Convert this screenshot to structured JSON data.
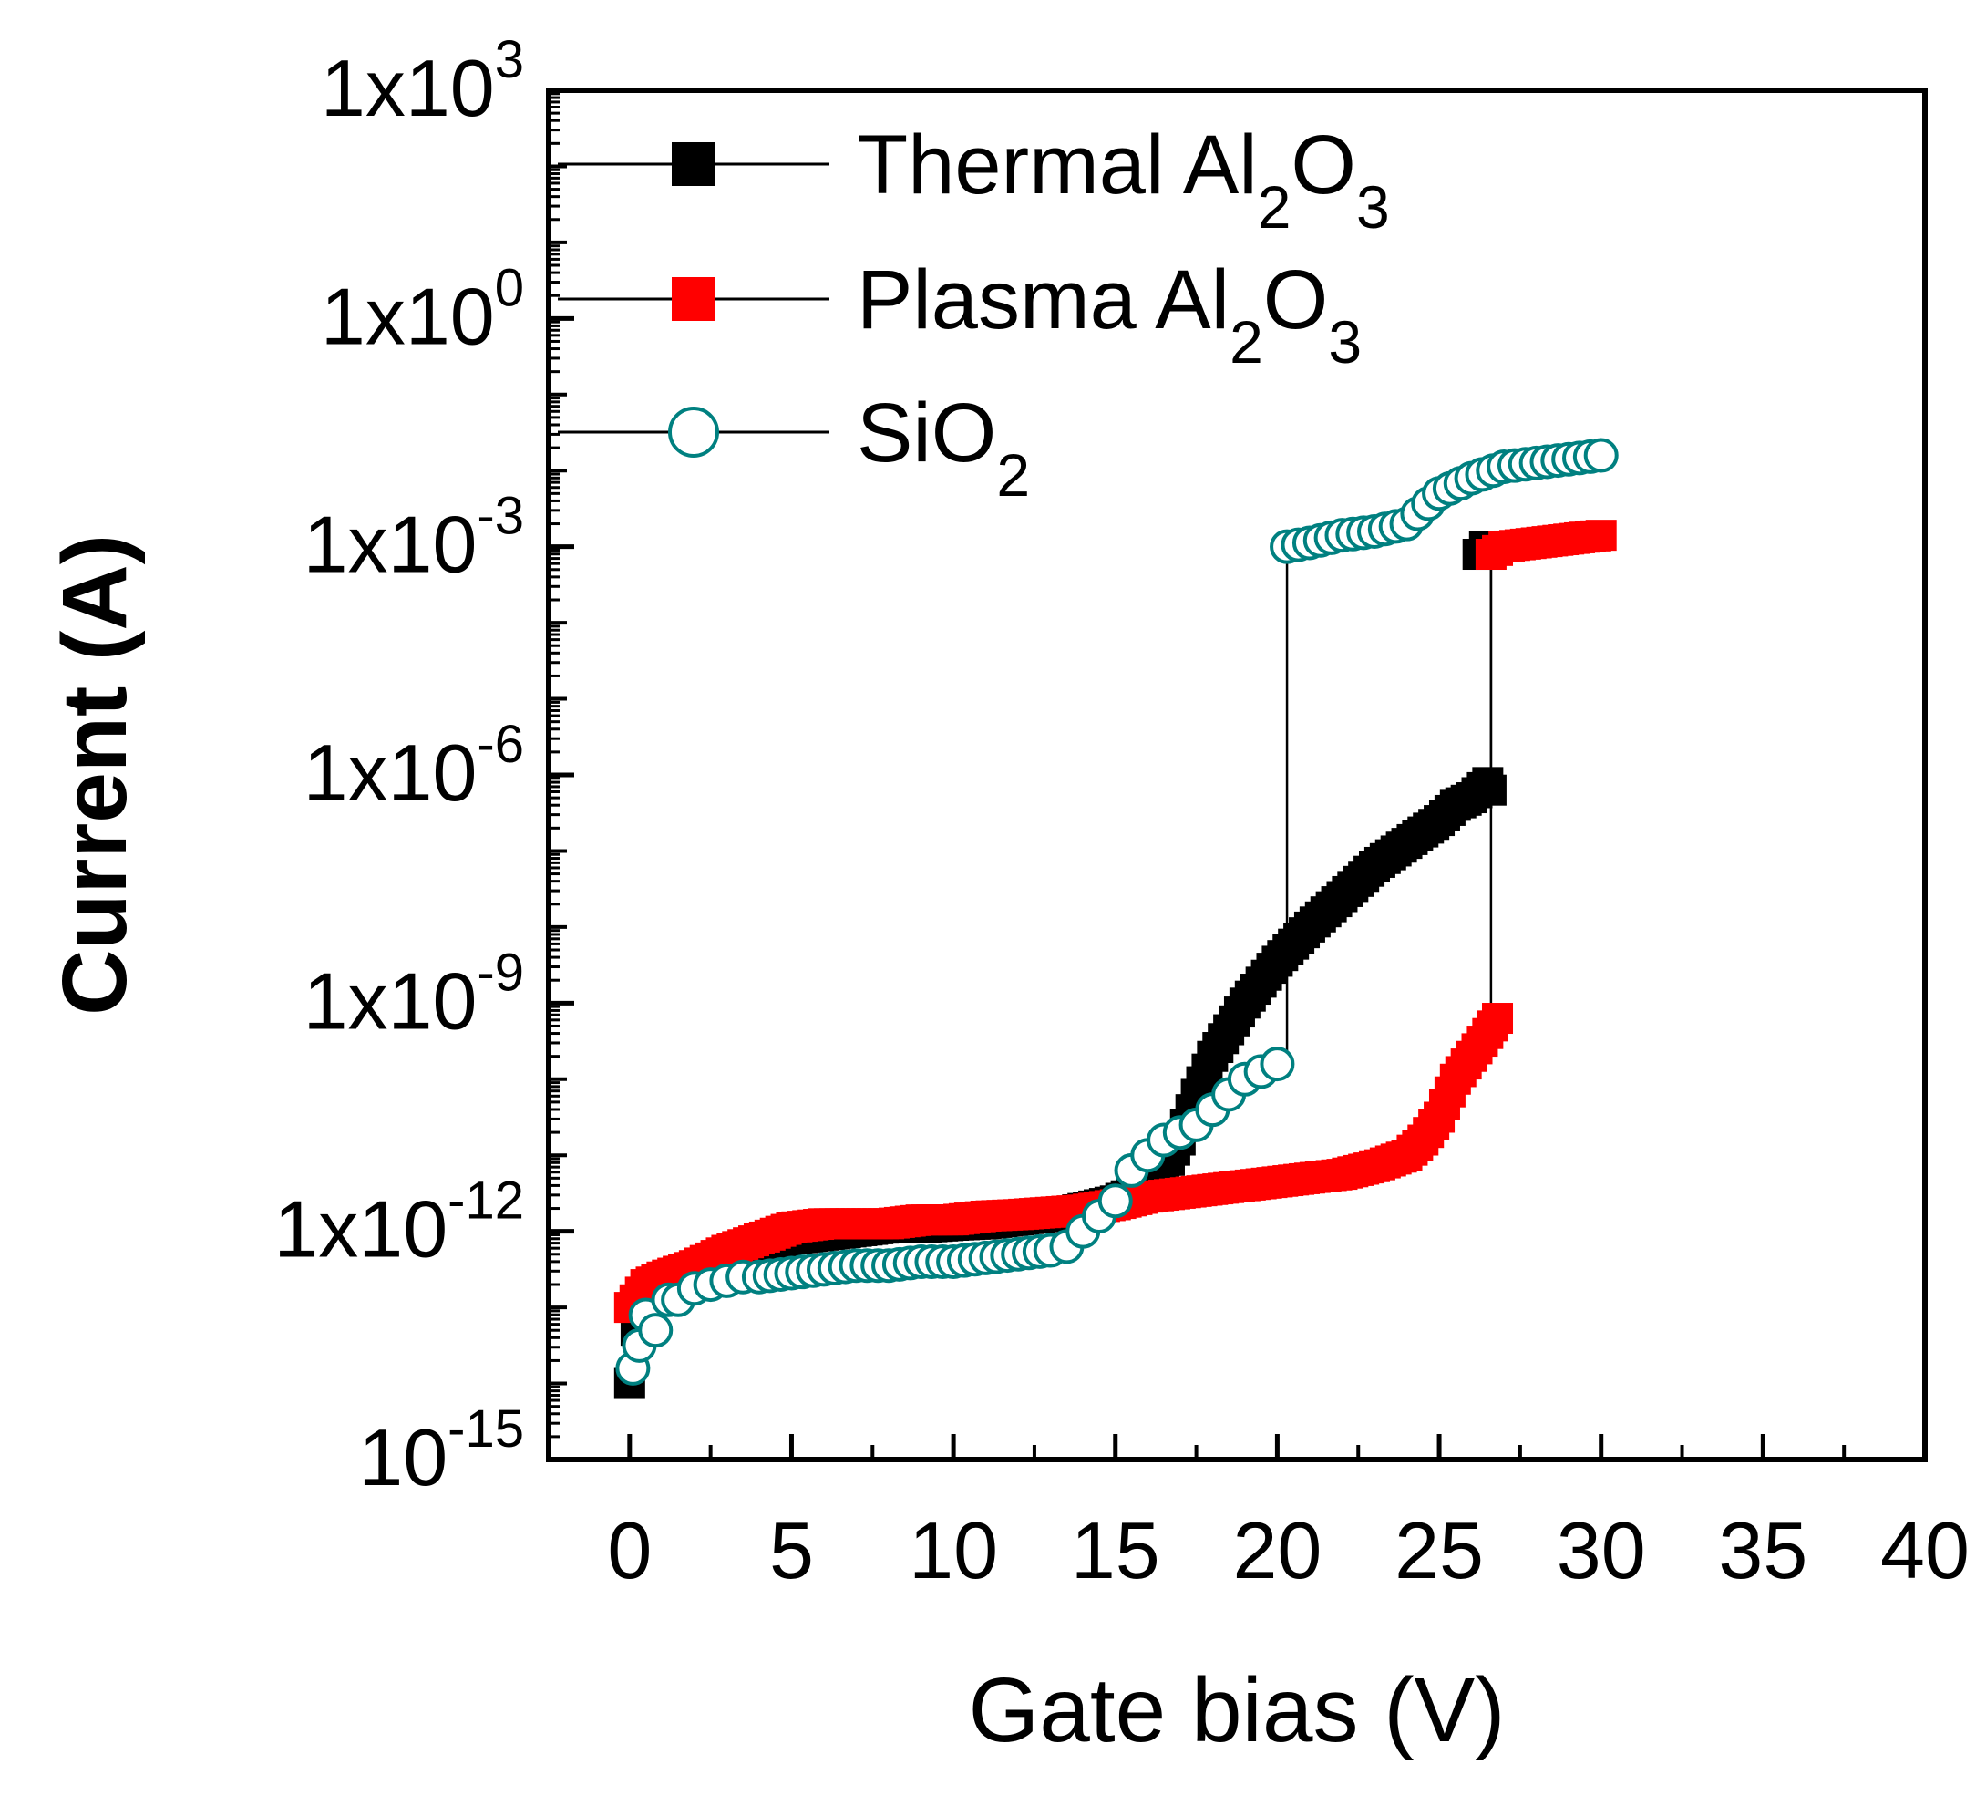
{
  "chart_data": {
    "type": "scatter",
    "title": "",
    "xlabel": "Gate bias (V)",
    "ylabel": "Current (A)",
    "xlim": [
      -2.5,
      40
    ],
    "ylim_log10": [
      -15,
      3
    ],
    "y_scale": "log",
    "x_ticks": [
      {
        "v": 0,
        "label": "0"
      },
      {
        "v": 5,
        "label": "5"
      },
      {
        "v": 10,
        "label": "10"
      },
      {
        "v": 15,
        "label": "15"
      },
      {
        "v": 20,
        "label": "20"
      },
      {
        "v": 25,
        "label": "25"
      },
      {
        "v": 30,
        "label": "30"
      },
      {
        "v": 35,
        "label": "35"
      },
      {
        "v": 40,
        "label": "40"
      }
    ],
    "y_ticks": [
      {
        "e": 3,
        "base": "1x10",
        "exp": "3"
      },
      {
        "e": 0,
        "base": "1x10",
        "exp": "0"
      },
      {
        "e": -3,
        "base": "1x10",
        "exp": "-3"
      },
      {
        "e": -6,
        "base": "1x10",
        "exp": "-6"
      },
      {
        "e": -9,
        "base": "1x10",
        "exp": "-9"
      },
      {
        "e": -12,
        "base": "1x10",
        "exp": "-12"
      },
      {
        "e": -15,
        "base": "10",
        "exp": "-15"
      }
    ],
    "legend": {
      "placement": "top-left",
      "entries": [
        {
          "name": "Thermal Al",
          "sub1": "2",
          "mid": "O",
          "sub2": "3",
          "color": "#000000",
          "marker": "square-filled"
        },
        {
          "name": "Plasma Al",
          "sub1": "2",
          "mid": "O",
          "sub2": "3",
          "color": "#ff0000",
          "marker": "square-filled"
        },
        {
          "name": "SiO",
          "sub1": "2",
          "mid": "",
          "sub2": "",
          "color": "#008080",
          "marker": "circle-open"
        }
      ]
    },
    "series": [
      {
        "name": "Thermal Al2O3",
        "color": "#000000",
        "marker": "square-filled",
        "x": [
          0,
          0.2,
          0.5,
          1,
          2,
          3,
          4,
          5,
          6,
          7,
          8,
          9,
          10,
          11,
          12,
          13,
          14,
          15,
          15.5,
          16,
          16.5,
          17,
          17.5,
          18,
          19,
          20,
          21,
          22,
          23,
          24,
          25,
          25.5,
          26,
          26.5,
          26.6,
          26.4,
          26.2
        ],
        "log10_y": [
          -14.0,
          -13.3,
          -12.8,
          -12.65,
          -12.5,
          -12.3,
          -12.2,
          -12.1,
          -12.05,
          -12.0,
          -11.95,
          -11.95,
          -11.92,
          -11.9,
          -11.85,
          -11.8,
          -11.7,
          -11.6,
          -11.5,
          -11.4,
          -11.2,
          -10.8,
          -10.2,
          -9.7,
          -9.0,
          -8.45,
          -8.0,
          -7.6,
          -7.2,
          -6.9,
          -6.6,
          -6.4,
          -6.3,
          -6.1,
          -6.2,
          -3.0,
          -3.1
        ]
      },
      {
        "name": "Plasma Al2O3",
        "color": "#ff0000",
        "marker": "square-filled",
        "x": [
          0,
          0.5,
          1,
          2,
          3,
          4,
          5,
          6,
          7,
          8,
          9,
          10,
          11,
          12,
          13,
          14,
          15,
          16,
          17,
          18,
          19,
          20,
          21,
          22,
          23,
          24,
          24.5,
          25,
          25.5,
          26,
          26.5,
          26.8,
          26.6,
          27,
          28,
          29,
          30
        ],
        "log10_y": [
          -13.0,
          -12.7,
          -12.6,
          -12.45,
          -12.25,
          -12.1,
          -11.95,
          -11.9,
          -11.9,
          -11.9,
          -11.85,
          -11.85,
          -11.8,
          -11.78,
          -11.75,
          -11.72,
          -11.65,
          -11.55,
          -11.5,
          -11.45,
          -11.4,
          -11.35,
          -11.3,
          -11.25,
          -11.15,
          -11.0,
          -10.8,
          -10.5,
          -10.0,
          -9.7,
          -9.4,
          -9.2,
          -3.1,
          -3.0,
          -2.95,
          -2.9,
          -2.85
        ]
      },
      {
        "name": "SiO2",
        "color": "#008080",
        "marker": "circle-open",
        "x": [
          0.1,
          0.3,
          0.5,
          0.8,
          1.2,
          1.5,
          2,
          2.5,
          3,
          3.5,
          4,
          5,
          6,
          7,
          8,
          9,
          10,
          11,
          12,
          13,
          13.5,
          14,
          14.5,
          15,
          15.5,
          16,
          16.5,
          17,
          17.5,
          18,
          18.5,
          19,
          19.5,
          20,
          20.3,
          21,
          22,
          23,
          24,
          25,
          26,
          27,
          28,
          29,
          30
        ],
        "log10_y": [
          -13.8,
          -13.5,
          -13.1,
          -13.3,
          -12.9,
          -12.9,
          -12.75,
          -12.7,
          -12.65,
          -12.6,
          -12.6,
          -12.55,
          -12.5,
          -12.45,
          -12.45,
          -12.4,
          -12.4,
          -12.35,
          -12.3,
          -12.25,
          -12.2,
          -12.0,
          -11.8,
          -11.6,
          -11.2,
          -11.0,
          -10.8,
          -10.7,
          -10.6,
          -10.4,
          -10.2,
          -10.0,
          -9.9,
          -9.8,
          -3.0,
          -2.95,
          -2.85,
          -2.8,
          -2.7,
          -2.3,
          -2.1,
          -1.95,
          -1.9,
          -1.85,
          -1.8
        ]
      }
    ],
    "breakdown_jumps": [
      {
        "series": "SiO2",
        "x": 20.3,
        "log10_from": -9.8,
        "log10_to": -3.0
      },
      {
        "series": "Thermal Al2O3",
        "x": 26.6,
        "log10_from": -6.2,
        "log10_to": -3.0
      },
      {
        "series": "Plasma Al2O3",
        "x": 26.6,
        "log10_from": -9.2,
        "log10_to": -3.1
      }
    ]
  }
}
